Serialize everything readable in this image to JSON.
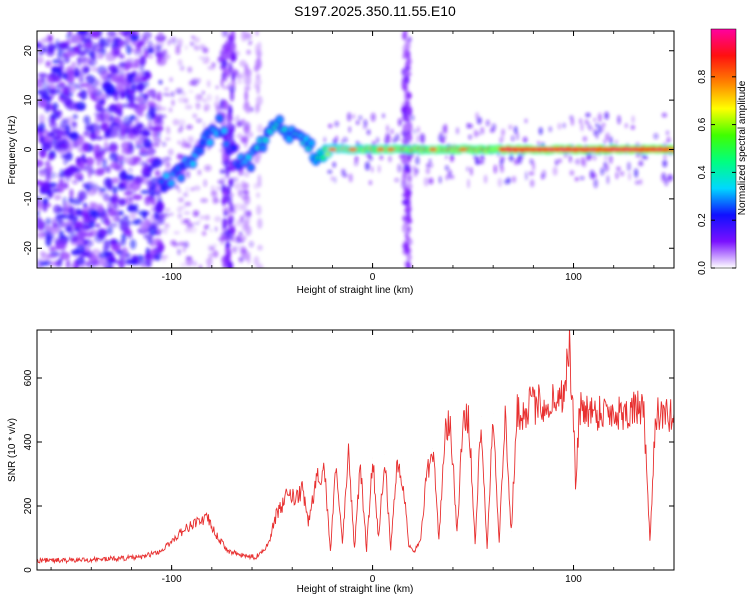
{
  "title": "S197.2025.350.11.55.E10",
  "chart_data": [
    {
      "type": "heatmap",
      "xlabel": "Height of straight line (km)",
      "ylabel": "Frequency (Hz)",
      "xlim": [
        -167,
        150
      ],
      "ylim": [
        -24,
        24
      ],
      "xticks": [
        -100,
        0,
        100
      ],
      "xtick_labels": [
        "-100",
        "0",
        "100"
      ],
      "yticks": [
        -20,
        -10,
        0,
        10,
        20
      ],
      "ytick_labels": [
        "-20",
        "-10",
        "0",
        "10",
        "20"
      ],
      "colorbar": {
        "label": "Normalized spectral amplitude",
        "range": [
          0,
          1
        ],
        "ticks": [
          0.0,
          0.2,
          0.4,
          0.6,
          0.8
        ],
        "tick_labels": [
          "0.0",
          "0.2",
          "0.4",
          "0.6",
          "0.8"
        ],
        "colors": [
          "#ffffff",
          "#7a10ff",
          "#1010ff",
          "#00d8ff",
          "#00ff80",
          "#40ff00",
          "#ffff00",
          "#ff8000",
          "#ff1010",
          "#ff00a0"
        ]
      },
      "ridge": {
        "x": [
          -105,
          -97,
          -90,
          -83,
          -76,
          -70,
          -64,
          -58,
          -52,
          -46,
          -40,
          -34,
          -28,
          -22,
          0,
          150
        ],
        "freq": [
          -7,
          -5,
          -2,
          2,
          5,
          0,
          -4,
          -1,
          3,
          5,
          3,
          1,
          -1,
          0,
          0,
          0
        ],
        "amplitude": [
          0.28,
          0.3,
          0.3,
          0.32,
          0.33,
          0.25,
          0.3,
          0.33,
          0.35,
          0.36,
          0.35,
          0.33,
          0.4,
          0.6,
          0.72,
          0.88
        ]
      }
    },
    {
      "type": "line",
      "xlabel": "Height of straight line (km)",
      "ylabel": "SNR (10 * v/v)",
      "xlim": [
        -167,
        150
      ],
      "ylim": [
        0,
        750
      ],
      "xticks": [
        -100,
        0,
        100
      ],
      "xtick_labels": [
        "-100",
        "0",
        "100"
      ],
      "yticks": [
        0,
        200,
        400,
        600
      ],
      "ytick_labels": [
        "0",
        "200",
        "400",
        "600"
      ],
      "color": "#e83030",
      "series": [
        {
          "name": "SNR",
          "x": [
            -167,
            -150,
            -130,
            -115,
            -105,
            -95,
            -88,
            -82,
            -78,
            -72,
            -65,
            -58,
            -52,
            -48,
            -45,
            -42,
            -38,
            -35,
            -32,
            -28,
            -24,
            -21,
            -18,
            -15,
            -12,
            -9,
            -6,
            -3,
            0,
            3,
            6,
            9,
            12,
            15,
            18,
            21,
            24,
            27,
            30,
            33,
            36,
            39,
            42,
            45,
            48,
            51,
            54,
            57,
            60,
            63,
            66,
            69,
            72,
            75,
            78,
            81,
            84,
            87,
            90,
            93,
            96,
            98,
            99,
            100,
            101,
            103,
            106,
            110,
            115,
            120,
            125,
            130,
            133,
            135,
            138,
            141,
            144,
            147,
            150
          ],
          "y": [
            30,
            30,
            35,
            40,
            60,
            120,
            150,
            160,
            110,
            60,
            45,
            40,
            80,
            170,
            200,
            240,
            220,
            250,
            150,
            280,
            320,
            60,
            340,
            80,
            360,
            70,
            330,
            60,
            350,
            100,
            360,
            60,
            340,
            280,
            80,
            60,
            100,
            300,
            380,
            90,
            440,
            450,
            110,
            460,
            470,
            80,
            480,
            70,
            490,
            90,
            480,
            120,
            500,
            490,
            520,
            510,
            530,
            500,
            540,
            520,
            600,
            700,
            560,
            480,
            250,
            500,
            510,
            490,
            500,
            490,
            495,
            500,
            510,
            480,
            90,
            500,
            470,
            480,
            490
          ]
        }
      ]
    }
  ]
}
